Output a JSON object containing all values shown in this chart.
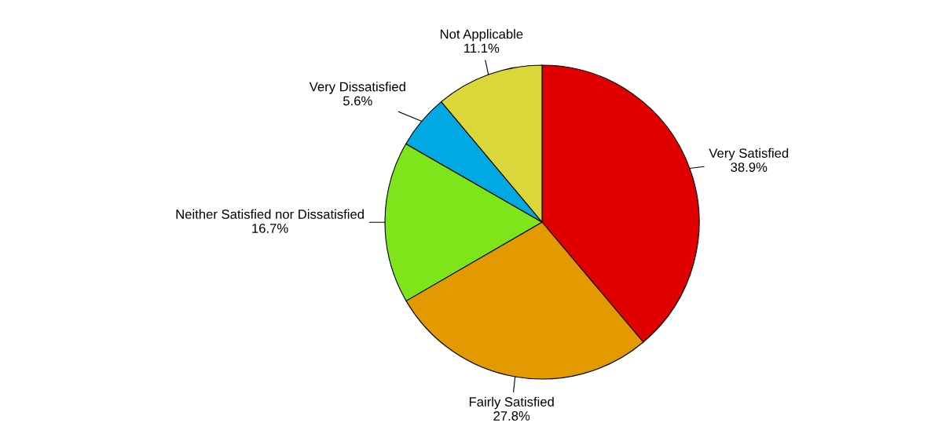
{
  "chart_data": {
    "type": "pie",
    "categories": [
      "Very Satisfied",
      "Fairly Satisfied",
      "Neither Satisfied nor Dissatisfied",
      "Very Dissatisfied",
      "Not Applicable"
    ],
    "values": [
      38.9,
      27.8,
      16.7,
      5.6,
      11.1
    ],
    "colors": [
      "#e00000",
      "#e39a00",
      "#7de51a",
      "#00a9e1",
      "#dbd63a"
    ],
    "value_labels": [
      "38.9%",
      "27.8%",
      "16.7%",
      "5.6%",
      "11.1%"
    ]
  }
}
